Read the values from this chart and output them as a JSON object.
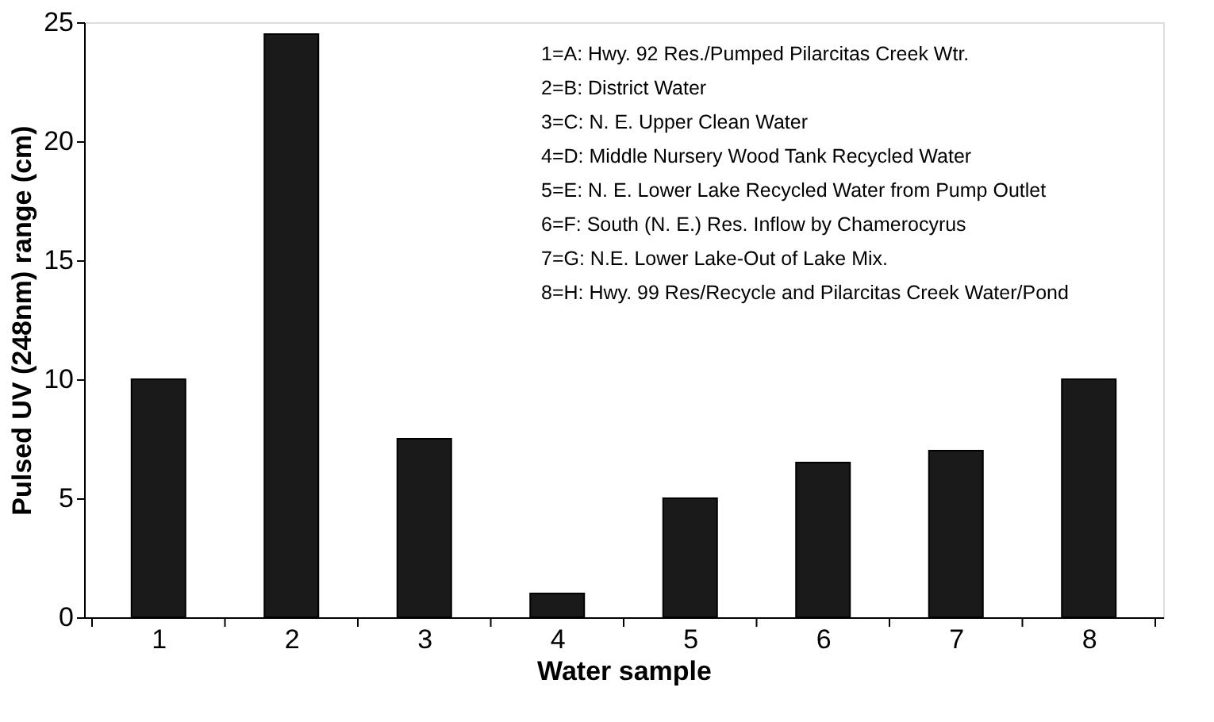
{
  "chart_data": {
    "type": "bar",
    "xlabel": "Water sample",
    "ylabel": "Pulsed UV (248nm) range (cm)",
    "categories": [
      "1",
      "2",
      "3",
      "4",
      "5",
      "6",
      "7",
      "8"
    ],
    "values": [
      10,
      24.5,
      7.5,
      1,
      5,
      6.5,
      7,
      10
    ],
    "color": "#1a1a1a",
    "ylim": [
      0,
      25
    ],
    "yticks": [
      0,
      5,
      10,
      15,
      20,
      25
    ],
    "grid": false,
    "annotations": [
      "1=A: Hwy. 92 Res./Pumped Pilarcitas Creek Wtr.",
      "2=B: District Water",
      "3=C: N. E. Upper Clean Water",
      "4=D: Middle Nursery Wood Tank Recycled Water",
      "5=E: N. E. Lower Lake Recycled Water from Pump Outlet",
      "6=F: South (N. E.) Res. Inflow by Chamerocyrus",
      "7=G: N.E. Lower Lake-Out of Lake Mix.",
      "8=H: Hwy. 99 Res/Recycle and Pilarcitas Creek Water/Pond"
    ]
  }
}
